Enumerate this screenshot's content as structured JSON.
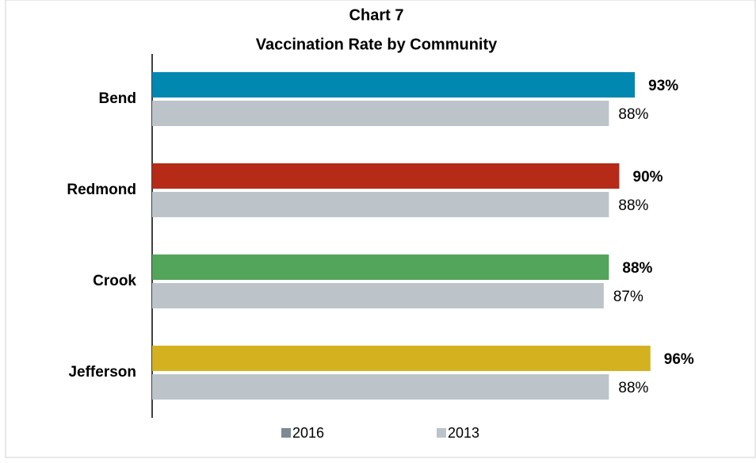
{
  "chart_data": {
    "type": "bar",
    "orientation": "horizontal",
    "title": "Chart 7",
    "subtitle": "Vaccination Rate by Community",
    "categories": [
      "Bend",
      "Redmond",
      "Crook",
      "Jefferson"
    ],
    "series": [
      {
        "name": "2016",
        "color": "#7f8a92",
        "bar_colors": [
          "#0088b0",
          "#b52b17",
          "#52a55a",
          "#d4b21f"
        ],
        "label_color": "#000000",
        "values": [
          93,
          90,
          88,
          96
        ],
        "value_labels": [
          "93%",
          "90%",
          "88%",
          "96%"
        ]
      },
      {
        "name": "2013",
        "color": "#bcc4ca",
        "label_color": "#8a9aa6",
        "values": [
          88,
          88,
          87,
          88
        ],
        "value_labels": [
          "88%",
          "88%",
          "87%",
          "88%"
        ]
      }
    ],
    "xlim": [
      0,
      100
    ],
    "legend": "bottom"
  }
}
